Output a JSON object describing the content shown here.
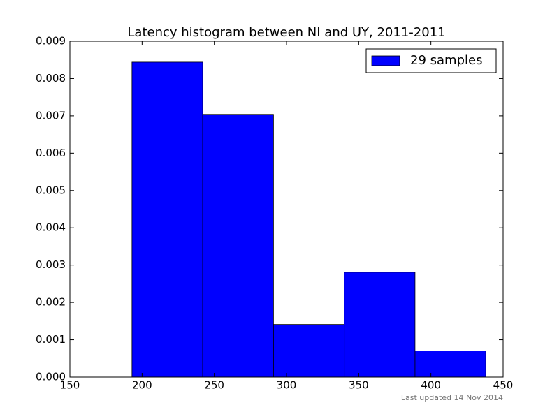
{
  "chart_data": {
    "type": "histogram",
    "title": "Latency histogram between NI and UY, 2011-2011",
    "bins": [
      193,
      242,
      291,
      340,
      389,
      438
    ],
    "series": [
      {
        "name": "29 samples",
        "color": "#0000ff",
        "values": [
          0.00844,
          0.00704,
          0.00141,
          0.00281,
          0.0007
        ]
      }
    ],
    "xlim": [
      150,
      450
    ],
    "xticks": [
      150,
      200,
      250,
      300,
      350,
      400,
      450
    ],
    "ylim": [
      0,
      0.009
    ],
    "yticks": [
      {
        "value": 0,
        "label": "0.000"
      },
      {
        "value": 0.001,
        "label": "0.001"
      },
      {
        "value": 0.002,
        "label": "0.002"
      },
      {
        "value": 0.003,
        "label": "0.003"
      },
      {
        "value": 0.004,
        "label": "0.004"
      },
      {
        "value": 0.005,
        "label": "0.005"
      },
      {
        "value": 0.006,
        "label": "0.006"
      },
      {
        "value": 0.007,
        "label": "0.007"
      },
      {
        "value": 0.008,
        "label": "0.008"
      },
      {
        "value": 0.009,
        "label": "0.009"
      }
    ],
    "legend": "upper right",
    "footnote": "Last updated 14 Nov 2014"
  }
}
